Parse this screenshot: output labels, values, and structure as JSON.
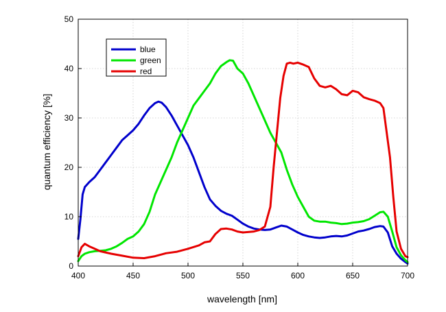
{
  "chart_data": {
    "type": "line",
    "title": "",
    "xlabel": "wavelength [nm]",
    "ylabel": "quantum efficiency [%]",
    "xlim": [
      400,
      700
    ],
    "ylim": [
      0,
      50
    ],
    "xticks": [
      400,
      450,
      500,
      550,
      600,
      650,
      700
    ],
    "yticks": [
      0,
      10,
      20,
      30,
      40,
      50
    ],
    "grid": true,
    "legend_position": "top-left",
    "series": [
      {
        "name": "blue",
        "color": "#0000cc",
        "x": [
          400,
          402,
          404,
          406,
          410,
          415,
          420,
          425,
          430,
          435,
          440,
          445,
          450,
          455,
          460,
          465,
          470,
          473,
          476,
          480,
          485,
          490,
          495,
          500,
          505,
          510,
          515,
          520,
          525,
          530,
          535,
          540,
          545,
          550,
          555,
          560,
          565,
          570,
          575,
          580,
          585,
          590,
          595,
          600,
          605,
          610,
          615,
          620,
          625,
          630,
          635,
          640,
          645,
          650,
          655,
          660,
          665,
          670,
          675,
          678,
          682,
          686,
          690,
          694,
          698,
          700
        ],
        "y": [
          5.5,
          9.5,
          14.5,
          16,
          17,
          18,
          19.5,
          21,
          22.5,
          24,
          25.5,
          26.5,
          27.5,
          28.8,
          30.5,
          32,
          33,
          33.3,
          33.1,
          32.2,
          30.5,
          28.5,
          26.5,
          24.5,
          22,
          19,
          16,
          13.5,
          12.2,
          11.2,
          10.6,
          10.2,
          9.4,
          8.6,
          8,
          7.6,
          7.4,
          7.3,
          7.4,
          7.8,
          8.2,
          8,
          7.4,
          6.8,
          6.3,
          6,
          5.8,
          5.7,
          5.8,
          6,
          6.1,
          6,
          6.2,
          6.6,
          7,
          7.2,
          7.5,
          7.9,
          8.1,
          8,
          6.8,
          4,
          2.5,
          1.5,
          0.8,
          0.5
        ]
      },
      {
        "name": "green",
        "color": "#00e600",
        "x": [
          400,
          403,
          406,
          410,
          415,
          420,
          425,
          430,
          435,
          440,
          445,
          450,
          455,
          460,
          465,
          470,
          475,
          480,
          485,
          490,
          495,
          500,
          505,
          510,
          515,
          520,
          525,
          530,
          535,
          538,
          541,
          545,
          550,
          555,
          560,
          565,
          570,
          575,
          580,
          585,
          590,
          595,
          600,
          605,
          610,
          615,
          620,
          625,
          630,
          635,
          640,
          645,
          650,
          655,
          660,
          665,
          670,
          675,
          678,
          682,
          686,
          690,
          694,
          698,
          700
        ],
        "y": [
          1,
          2,
          2.5,
          2.8,
          3,
          3.1,
          3.2,
          3.5,
          4,
          4.7,
          5.5,
          6,
          7,
          8.5,
          11,
          14.5,
          17,
          19.5,
          22,
          25,
          27.5,
          30,
          32.5,
          34,
          35.5,
          37,
          39,
          40.5,
          41.3,
          41.7,
          41.6,
          40,
          39,
          37,
          34.5,
          32,
          29.5,
          27,
          25,
          23,
          19.5,
          16.5,
          14,
          12,
          10,
          9.2,
          9,
          9,
          8.8,
          8.7,
          8.5,
          8.6,
          8.8,
          8.9,
          9.1,
          9.5,
          10.2,
          10.9,
          11,
          10,
          7,
          3.8,
          2.2,
          1.2,
          0.8
        ]
      },
      {
        "name": "red",
        "color": "#e60000",
        "x": [
          400,
          403,
          406,
          410,
          415,
          420,
          430,
          440,
          450,
          460,
          470,
          480,
          490,
          500,
          510,
          515,
          520,
          525,
          530,
          535,
          540,
          545,
          550,
          560,
          565,
          570,
          575,
          578,
          581,
          584,
          587,
          590,
          593,
          596,
          600,
          605,
          610,
          615,
          620,
          625,
          630,
          635,
          640,
          645,
          650,
          655,
          660,
          665,
          670,
          675,
          678,
          681,
          684,
          687,
          690,
          694,
          698,
          700
        ],
        "y": [
          2,
          3.8,
          4.5,
          4,
          3.5,
          3,
          2.5,
          2.1,
          1.7,
          1.6,
          2,
          2.6,
          2.9,
          3.5,
          4.2,
          4.8,
          5,
          6.5,
          7.5,
          7.6,
          7.4,
          7,
          6.8,
          7,
          7.3,
          8,
          12,
          20,
          27,
          34,
          38.5,
          41,
          41.2,
          41,
          41.2,
          40.8,
          40.3,
          38,
          36.5,
          36.2,
          36.5,
          35.8,
          34.8,
          34.6,
          35.5,
          35.2,
          34.2,
          33.8,
          33.5,
          33,
          32,
          27,
          22,
          14,
          7,
          3.5,
          2,
          1.8
        ]
      }
    ]
  }
}
